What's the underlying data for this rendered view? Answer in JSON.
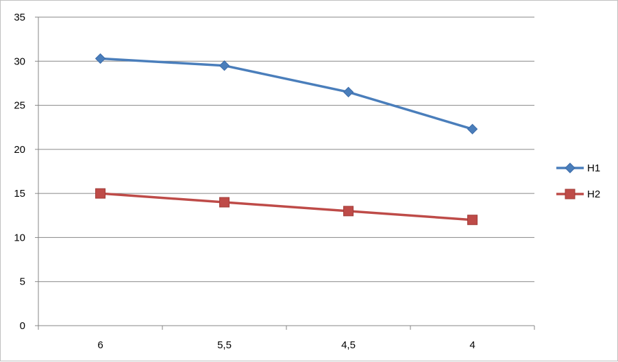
{
  "chart_data": {
    "type": "line",
    "categories": [
      "6",
      "5,5",
      "4,5",
      "4"
    ],
    "series": [
      {
        "name": "H1",
        "values": [
          30.3,
          29.5,
          26.5,
          22.3
        ],
        "color": "#4a7ebb",
        "marker": "diamond"
      },
      {
        "name": "H2",
        "values": [
          15,
          14,
          13,
          12
        ],
        "color": "#be4b48",
        "marker": "square"
      }
    ],
    "ylim": [
      0,
      35
    ],
    "y_ticks": [
      0,
      5,
      10,
      15,
      20,
      25,
      30,
      35
    ],
    "y_tick_labels": [
      "0",
      "5",
      "10",
      "15",
      "20",
      "25",
      "30",
      "35"
    ],
    "grid": true,
    "legend_position": "right"
  }
}
